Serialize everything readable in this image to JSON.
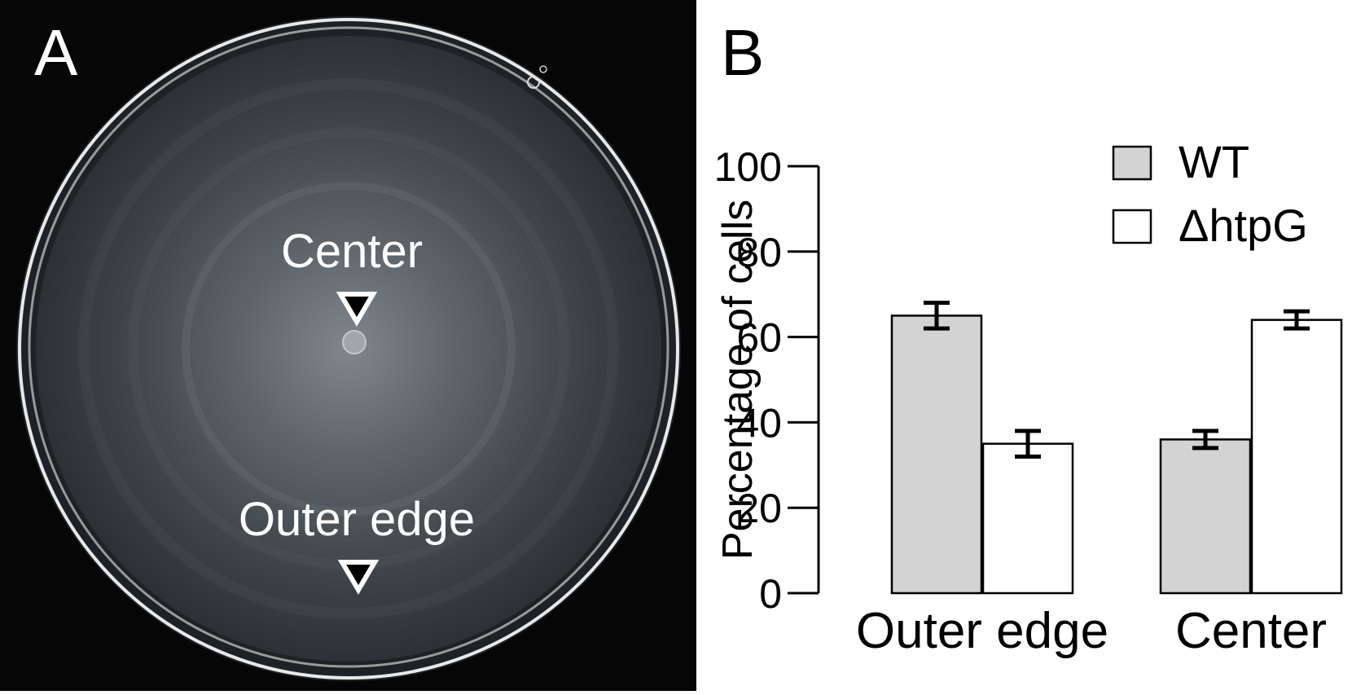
{
  "panel_a": {
    "label": "A",
    "center_label": "Center",
    "edge_label": "Outer edge"
  },
  "panel_b": {
    "label": "B"
  },
  "chart_data": {
    "type": "bar",
    "categories": [
      "Outer edge",
      "Center"
    ],
    "series": [
      {
        "name": "WT",
        "values": [
          65,
          36
        ],
        "errors": [
          3,
          2
        ],
        "color": "#d3d3d3"
      },
      {
        "name": "ΔhtpG",
        "values": [
          35,
          64
        ],
        "errors": [
          3,
          2
        ],
        "color": "#ffffff"
      }
    ],
    "ylabel": "Percentage of cells",
    "ylim": [
      0,
      100
    ],
    "yticks": [
      0,
      20,
      40,
      60,
      80,
      100
    ],
    "legend_position": "top-right",
    "grid": false
  }
}
